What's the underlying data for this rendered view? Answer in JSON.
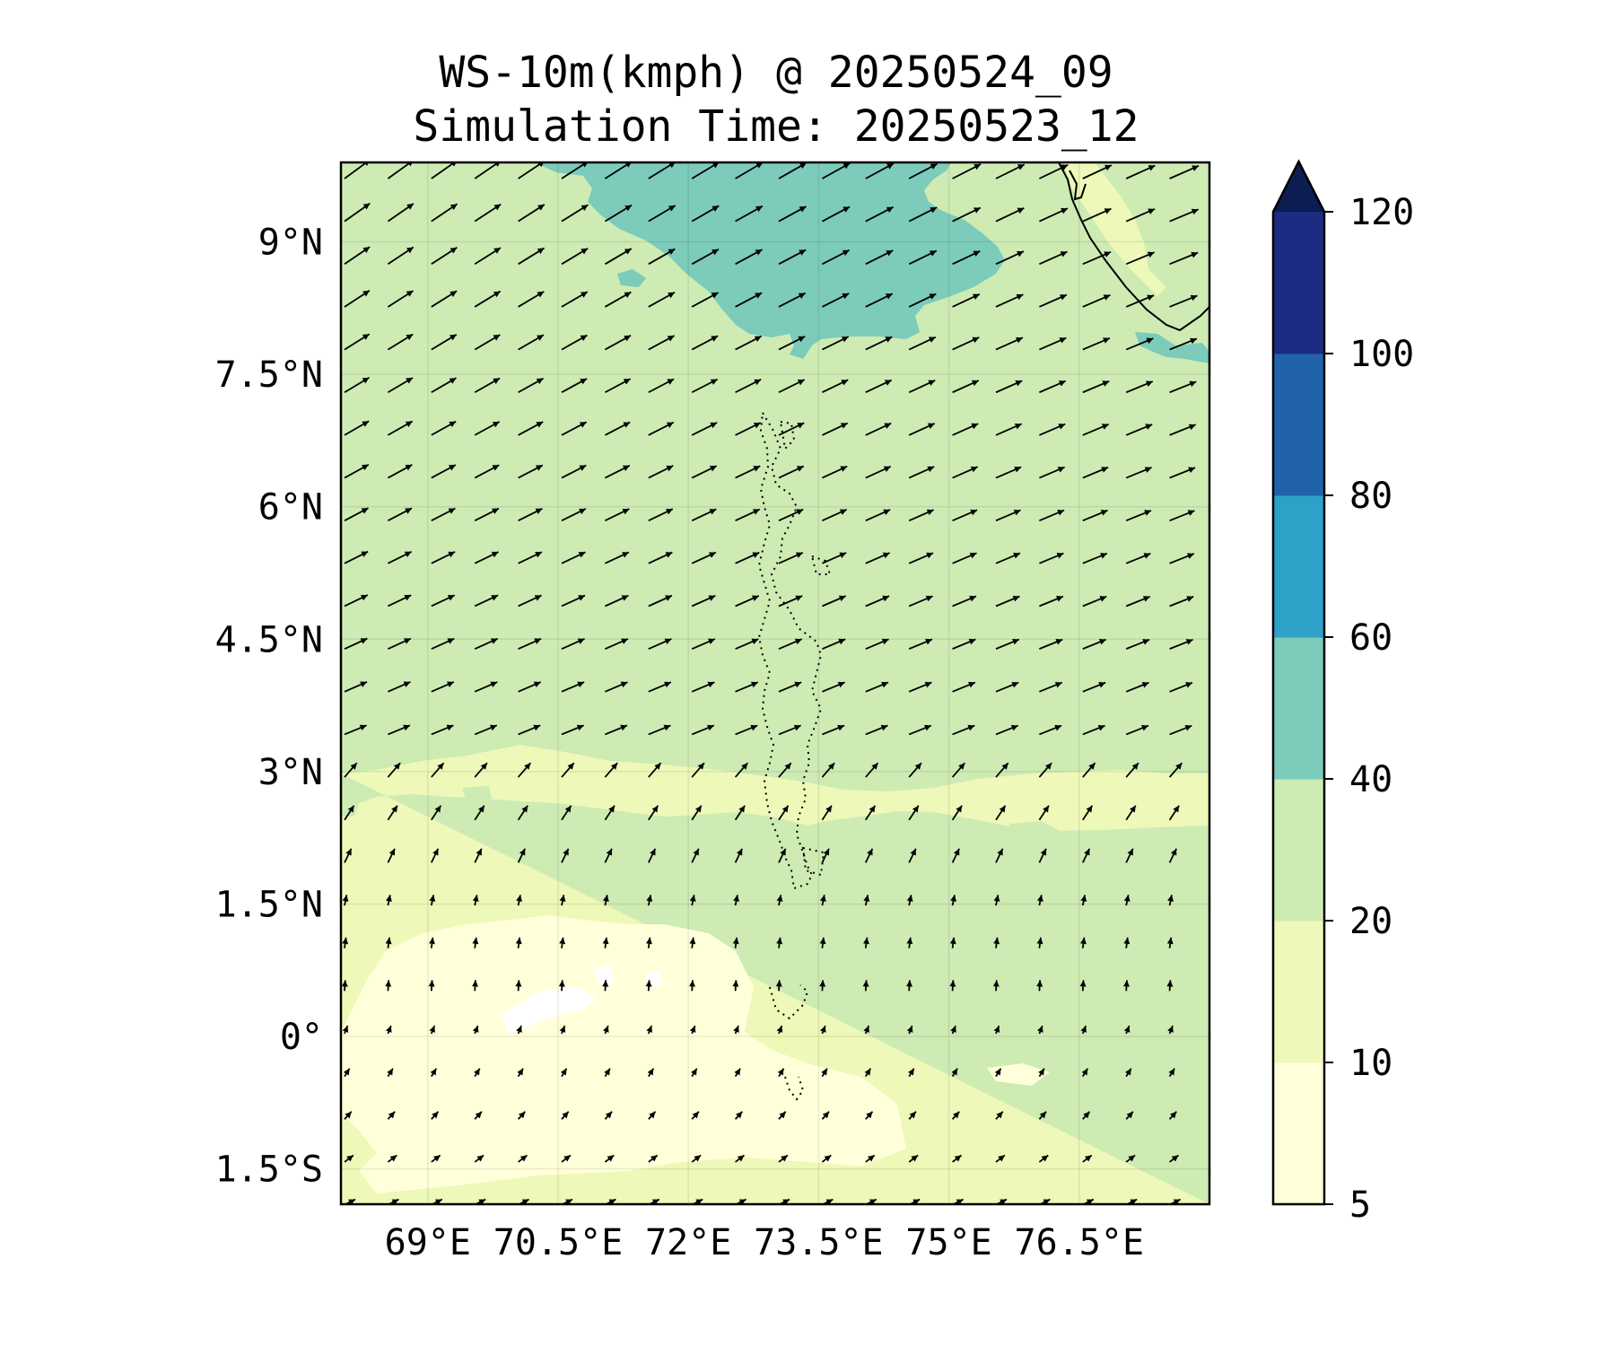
{
  "title": "WS-10m(kmph) @ 20250524_09",
  "subtitle": "Simulation Time: 20250523_12",
  "lat_ticks": [
    "9°N",
    "7.5°N",
    "6°N",
    "4.5°N",
    "3°N",
    "1.5°N",
    "0°",
    "1.5°S"
  ],
  "lon_ticks": [
    "69°E",
    "70.5°E",
    "72°E",
    "73.5°E",
    "75°E",
    "76.5°E"
  ],
  "colorbar": {
    "ticks": [
      "5",
      "10",
      "20",
      "40",
      "60",
      "80",
      "100",
      "120"
    ],
    "extend": "max",
    "bins": [
      {
        "from": 5,
        "to": 10,
        "color": "#ffffd9"
      },
      {
        "from": 10,
        "to": 20,
        "color": "#eef8b8"
      },
      {
        "from": 20,
        "to": 40,
        "color": "#cdebb3"
      },
      {
        "from": 40,
        "to": 60,
        "color": "#7ccbbb"
      },
      {
        "from": 60,
        "to": 80,
        "color": "#2ea1c8"
      },
      {
        "from": 80,
        "to": 100,
        "color": "#2163aa"
      },
      {
        "from": 100,
        "to": 120,
        "color": "#1c2c82"
      }
    ],
    "extend_color": "#0b1d51"
  },
  "chart_data": {
    "type": "heatmap",
    "variable": "WS-10m(kmph)",
    "lon_range": [
      68.0,
      78.0
    ],
    "lat_range": [
      -1.9,
      9.9
    ],
    "regions": [
      {
        "name": "north high-wind patch",
        "speed_bin": "40-60"
      },
      {
        "name": "central band",
        "speed_bin": "20-40"
      },
      {
        "name": "southern area",
        "speed_bin": "10-20"
      },
      {
        "name": "equatorial calm zone",
        "speed_bin": "5-10"
      }
    ],
    "wind_vectors": "west-southwesterly north of ~3°N, turning south-southeasterly to southerly near the equator"
  }
}
